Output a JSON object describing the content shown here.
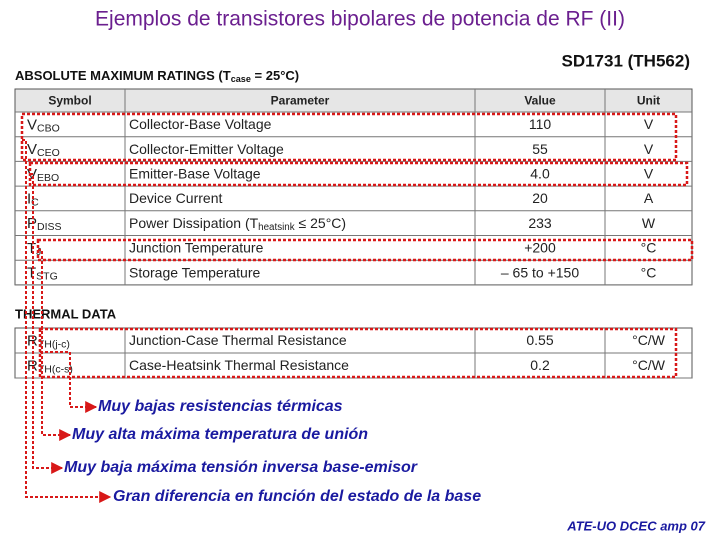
{
  "title": "Ejemplos de transistores bipolares de potencia de RF (II)",
  "part_number": "SD1731 (TH562)",
  "ratings": {
    "heading": [
      "ABSOLUTE MAXIMUM RATINGS (T",
      "case",
      " = 25°C)"
    ],
    "columns": [
      "Symbol",
      "Parameter",
      "Value",
      "Unit"
    ],
    "rows": [
      [
        [
          "V",
          "CBO"
        ],
        "Collector-Base Voltage",
        "110",
        "V"
      ],
      [
        [
          "V",
          "CEO"
        ],
        "Collector-Emitter Voltage",
        "55",
        "V"
      ],
      [
        [
          "V",
          "EBO"
        ],
        "Emitter-Base Voltage",
        "4.0",
        "V"
      ],
      [
        [
          "I",
          "C"
        ],
        "Device Current",
        "20",
        "A"
      ],
      [
        [
          "P",
          "DISS"
        ],
        [
          "Power Dissipation (T",
          "heatsink",
          " ≤ 25°C)"
        ],
        "233",
        "W"
      ],
      [
        [
          "T",
          "J"
        ],
        "Junction Temperature",
        "+200",
        "°C"
      ],
      [
        [
          "T",
          "STG"
        ],
        "Storage Temperature",
        "– 65 to +150",
        "°C"
      ]
    ]
  },
  "thermal": {
    "heading": "THERMAL DATA",
    "rows": [
      [
        [
          "R",
          "TH(j-c)"
        ],
        "Junction-Case Thermal Resistance",
        "0.55",
        "°C/W"
      ],
      [
        [
          "R",
          "TH(c-s)"
        ],
        "Case-Heatsink Thermal Resistance",
        "0.2",
        "°C/W"
      ]
    ]
  },
  "annotations": [
    "Muy bajas resistencias térmicas",
    "Muy alta máxima temperatura de unión",
    "Muy baja máxima tensión inversa base-emisor",
    "Gran diferencia en función del estado de la base"
  ],
  "footer": "ATE-UO DCEC amp 07"
}
